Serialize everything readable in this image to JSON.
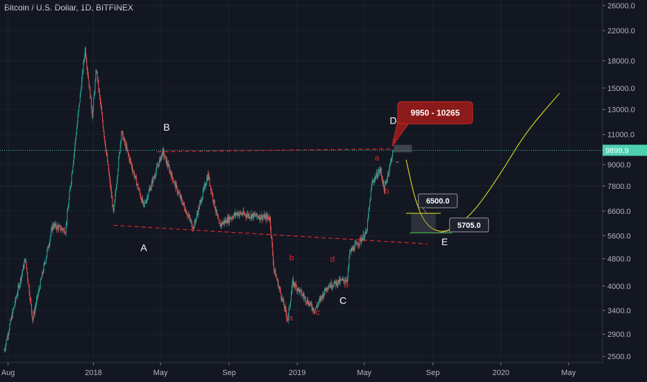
{
  "header": {
    "title": "Bitcoin / U.S. Dollar, 1D, BITFINEX"
  },
  "price_label": "9899.9",
  "chart_data": {
    "type": "candlestick",
    "yscale": "log",
    "y_ticks": [
      2500,
      2900,
      3400,
      4000,
      4800,
      5600,
      6600,
      7800,
      9000,
      11000,
      13000,
      15000,
      18000,
      22000,
      26000
    ],
    "y_tick_labels": [
      "2500.0",
      "2900.0",
      "3400.0",
      "4000.0",
      "4800.0",
      "5600.0",
      "6600.0",
      "7800.0",
      "9000.0",
      "11000.0",
      "13000.0",
      "15000.0",
      "18000.0",
      "22000.0",
      "26000.0"
    ],
    "x_ticks": [
      "Aug",
      "2018",
      "May",
      "Sep",
      "2019",
      "May",
      "Sep",
      "2020",
      "May"
    ],
    "x_ticks_dates": [
      "2017-08-01",
      "2018-01-01",
      "2018-05-01",
      "2018-09-01",
      "2019-01-01",
      "2019-05-01",
      "2019-09-01",
      "2020-01-01",
      "2020-05-01"
    ],
    "current_price": 9899.9,
    "price_path": [
      [
        "2017-07-25",
        2600
      ],
      [
        "2017-08-10",
        3400
      ],
      [
        "2017-09-01",
        4800
      ],
      [
        "2017-09-14",
        3200
      ],
      [
        "2017-10-01",
        4300
      ],
      [
        "2017-10-20",
        6000
      ],
      [
        "2017-11-12",
        5800
      ],
      [
        "2017-11-28",
        10000
      ],
      [
        "2017-12-17",
        19500
      ],
      [
        "2017-12-30",
        12500
      ],
      [
        "2018-01-06",
        17000
      ],
      [
        "2018-02-06",
        6500
      ],
      [
        "2018-02-20",
        11200
      ],
      [
        "2018-04-01",
        6800
      ],
      [
        "2018-05-05",
        9800
      ],
      [
        "2018-06-01",
        7500
      ],
      [
        "2018-06-29",
        5900
      ],
      [
        "2018-07-25",
        8400
      ],
      [
        "2018-08-14",
        6000
      ],
      [
        "2018-09-15",
        6500
      ],
      [
        "2018-11-13",
        6300
      ],
      [
        "2018-11-20",
        4500
      ],
      [
        "2018-12-15",
        3200
      ],
      [
        "2018-12-24",
        4100
      ],
      [
        "2019-02-01",
        3400
      ],
      [
        "2019-02-24",
        4000
      ],
      [
        "2019-04-01",
        4200
      ],
      [
        "2019-04-05",
        5000
      ],
      [
        "2019-05-05",
        5700
      ],
      [
        "2019-05-15",
        8000
      ],
      [
        "2019-05-30",
        8700
      ],
      [
        "2019-06-06",
        7600
      ],
      [
        "2019-06-22",
        9899.9
      ]
    ],
    "projection_path": [
      [
        "2019-07-15",
        9300
      ],
      [
        "2019-08-01",
        7000
      ],
      [
        "2019-08-20",
        6000
      ],
      [
        "2019-09-15",
        5705
      ],
      [
        "2019-10-10",
        5900
      ],
      [
        "2019-11-15",
        6600
      ],
      [
        "2020-01-01",
        8500
      ],
      [
        "2020-02-15",
        11200
      ],
      [
        "2020-04-15",
        14500
      ]
    ],
    "trendlines": [
      {
        "from": [
          "2018-02-06",
          6000
        ],
        "to": [
          "2019-08-22",
          5300
        ],
        "style": "dashed",
        "color": "#e0242b"
      },
      {
        "from": [
          "2018-04-25",
          9800
        ],
        "to": [
          "2019-06-22",
          10000
        ],
        "style": "dashed",
        "color": "#e0242b"
      }
    ],
    "levels": [
      {
        "value": 6500,
        "label": "6500.0",
        "from": "2019-07-15",
        "to": "2019-09-15"
      },
      {
        "value": 5705,
        "label": "5705.0",
        "from": "2019-07-22",
        "to": "2019-10-05"
      }
    ],
    "target_box": {
      "label": "9950 - 10265",
      "low": 9950,
      "high": 10265
    },
    "wave_labels": [
      {
        "text": "A",
        "date": "2018-04-01",
        "price": 5050,
        "color": "white"
      },
      {
        "text": "B",
        "date": "2018-05-12",
        "price": 11300,
        "color": "white"
      },
      {
        "text": "C",
        "date": "2019-03-24",
        "price": 3550,
        "color": "white"
      },
      {
        "text": "D",
        "date": "2019-06-22",
        "price": 11800,
        "color": "white"
      },
      {
        "text": "E",
        "date": "2019-09-22",
        "price": 5250,
        "color": "white"
      },
      {
        "text": "a",
        "date": "2018-12-20",
        "price": 3180,
        "color": "red"
      },
      {
        "text": "b",
        "date": "2018-12-22",
        "price": 4750,
        "color": "red"
      },
      {
        "text": "c",
        "date": "2019-02-07",
        "price": 3300,
        "color": "red"
      },
      {
        "text": "d",
        "date": "2019-03-05",
        "price": 4700,
        "color": "red"
      },
      {
        "text": "e",
        "date": "2019-03-30",
        "price": 3950,
        "color": "red"
      },
      {
        "text": "a",
        "date": "2019-05-24",
        "price": 9250,
        "color": "red"
      },
      {
        "text": "b",
        "date": "2019-06-10",
        "price": 7400,
        "color": "red"
      },
      {
        "text": "c",
        "date": "2019-06-24",
        "price": 10400,
        "color": "red"
      }
    ],
    "colors": {
      "up": "#26a69a",
      "down": "#ef5350",
      "projection": "#d6d022",
      "current_price": "#4dd0b0",
      "wave_red": "#e0242b",
      "box": "#8b1a1a"
    }
  }
}
